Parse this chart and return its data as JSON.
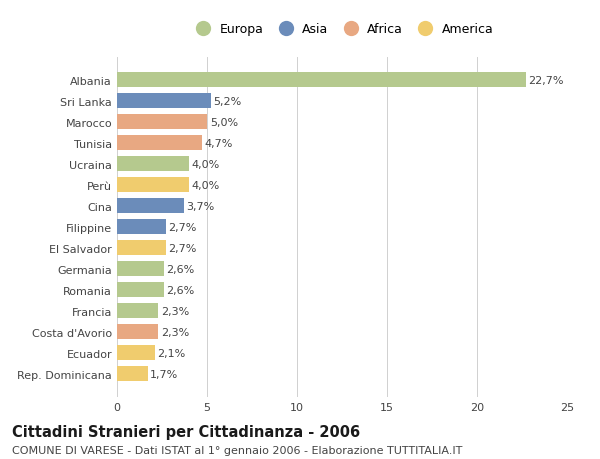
{
  "categories": [
    "Albania",
    "Sri Lanka",
    "Marocco",
    "Tunisia",
    "Ucraina",
    "Perù",
    "Cina",
    "Filippine",
    "El Salvador",
    "Germania",
    "Romania",
    "Francia",
    "Costa d'Avorio",
    "Ecuador",
    "Rep. Dominicana"
  ],
  "values": [
    22.7,
    5.2,
    5.0,
    4.7,
    4.0,
    4.0,
    3.7,
    2.7,
    2.7,
    2.6,
    2.6,
    2.3,
    2.3,
    2.1,
    1.7
  ],
  "labels": [
    "22,7%",
    "5,2%",
    "5,0%",
    "4,7%",
    "4,0%",
    "4,0%",
    "3,7%",
    "2,7%",
    "2,7%",
    "2,6%",
    "2,6%",
    "2,3%",
    "2,3%",
    "2,1%",
    "1,7%"
  ],
  "colors": [
    "#b5c98e",
    "#6b8cba",
    "#e8a882",
    "#e8a882",
    "#b5c98e",
    "#f0cc6e",
    "#6b8cba",
    "#6b8cba",
    "#f0cc6e",
    "#b5c98e",
    "#b5c98e",
    "#b5c98e",
    "#e8a882",
    "#f0cc6e",
    "#f0cc6e"
  ],
  "legend_labels": [
    "Europa",
    "Asia",
    "Africa",
    "America"
  ],
  "legend_colors": [
    "#b5c98e",
    "#6b8cba",
    "#e8a882",
    "#f0cc6e"
  ],
  "title": "Cittadini Stranieri per Cittadinanza - 2006",
  "subtitle": "COMUNE DI VARESE - Dati ISTAT al 1° gennaio 2006 - Elaborazione TUTTITALIA.IT",
  "xlim": [
    0,
    25
  ],
  "xticks": [
    0,
    5,
    10,
    15,
    20,
    25
  ],
  "background_color": "#ffffff",
  "grid_color": "#d0d0d0",
  "bar_height": 0.72,
  "label_fontsize": 8.0,
  "tick_fontsize": 8.0,
  "title_fontsize": 10.5,
  "subtitle_fontsize": 8.0
}
